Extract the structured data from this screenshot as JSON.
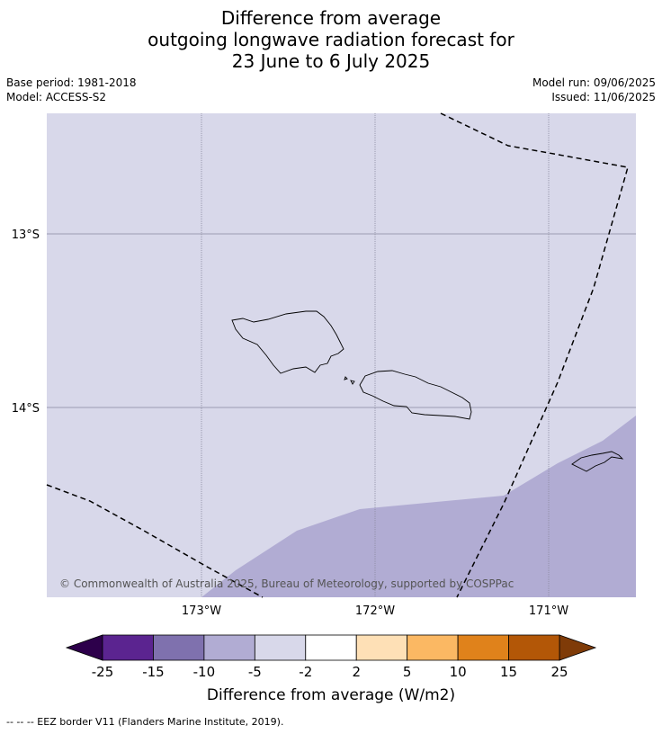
{
  "title": {
    "line1": "Difference from average",
    "line2": "outgoing longwave radiation forecast for",
    "line3": "23 June to 6 July 2025"
  },
  "meta": {
    "base_period": "Base period: 1981-2018",
    "model": "Model: ACCESS-S2",
    "model_run": "Model run: 09/06/2025",
    "issued": "Issued: 11/06/2025"
  },
  "map": {
    "latitude_labels": [
      "13°S",
      "14°S"
    ],
    "longitude_labels": [
      "173°W",
      "172°W",
      "171°W"
    ],
    "copyright": "© Commonwealth of Australia 2025, Bureau of Meteorology, supported by COSPPac",
    "background_color": "#d8d8ea",
    "anomaly_color": "#b1acd3"
  },
  "colorbar": {
    "tick_labels": [
      "-25",
      "-15",
      "-10",
      "-5",
      "-2",
      "2",
      "5",
      "10",
      "15",
      "25"
    ],
    "colors": [
      "#5b2490",
      "#7f71ae",
      "#b1acd3",
      "#d8d8ea",
      "#ffffff",
      "#fee0b6",
      "#fbb863",
      "#e0821b",
      "#b35707"
    ],
    "extend_low_color": "#2d004b",
    "extend_high_color": "#7f3b08",
    "title": "Difference from average (W/m2)"
  },
  "footnote": "--  --  -- EEZ border V11 (Flanders Marine Institute, 2019)."
}
